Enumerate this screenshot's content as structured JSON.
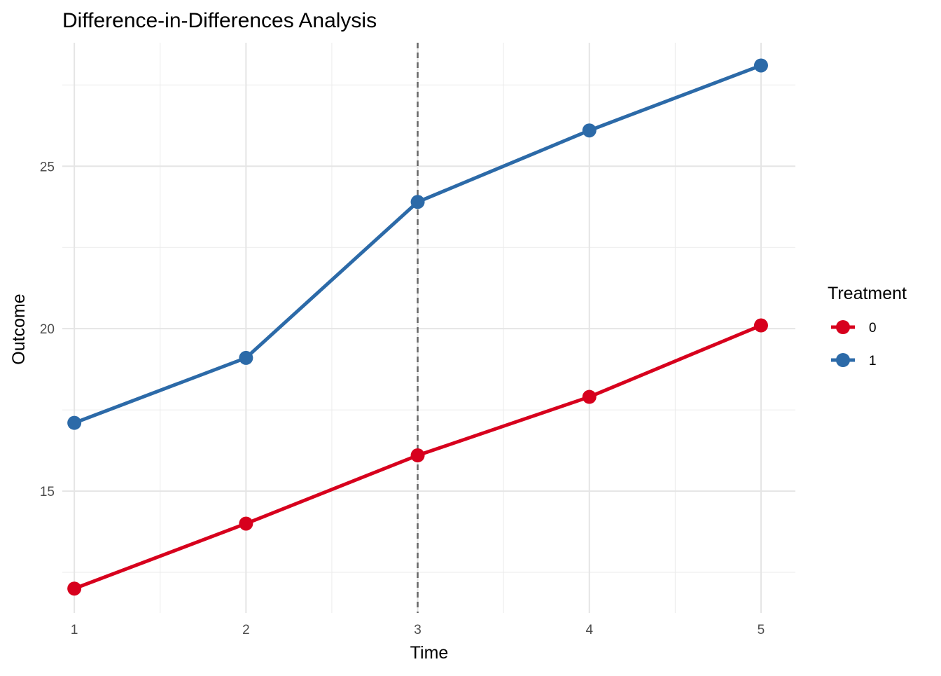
{
  "chart_data": {
    "type": "line",
    "title": "Difference-in-Differences Analysis",
    "xlabel": "Time",
    "ylabel": "Outcome",
    "x": [
      1,
      2,
      3,
      4,
      5
    ],
    "x_ticks": [
      "1",
      "2",
      "3",
      "4",
      "5"
    ],
    "y_ticks": [
      15,
      20,
      25
    ],
    "y_tick_labels": [
      "15",
      "20",
      "25"
    ],
    "xlim": [
      0.93,
      5.2
    ],
    "ylim": [
      11.25,
      28.8
    ],
    "grid": true,
    "reference_line": {
      "x": 3,
      "style": "dashed",
      "color": "#666666"
    },
    "legend": {
      "title": "Treatment",
      "position": "right"
    },
    "series": [
      {
        "name": "0",
        "color": "#d7001d",
        "values": [
          12.0,
          14.0,
          16.1,
          17.9,
          20.1
        ]
      },
      {
        "name": "1",
        "color": "#2c6aa8",
        "values": [
          17.1,
          19.1,
          23.9,
          26.1,
          28.1
        ]
      }
    ]
  }
}
